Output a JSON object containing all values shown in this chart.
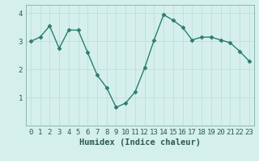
{
  "title": "",
  "xlabel": "Humidex (Indice chaleur)",
  "ylabel": "",
  "x_values": [
    0,
    1,
    2,
    3,
    4,
    5,
    6,
    7,
    8,
    9,
    10,
    11,
    12,
    13,
    14,
    15,
    16,
    17,
    18,
    19,
    20,
    21,
    22,
    23
  ],
  "y_values": [
    3.0,
    3.15,
    3.55,
    2.75,
    3.4,
    3.4,
    2.6,
    1.8,
    1.35,
    0.65,
    0.8,
    1.2,
    2.05,
    3.05,
    3.95,
    3.75,
    3.5,
    3.05,
    3.15,
    3.15,
    3.05,
    2.95,
    2.65,
    2.3
  ],
  "line_color": "#2d7d6e",
  "marker": "D",
  "marker_size": 2.5,
  "background_color": "#d5f0ec",
  "grid_color": "#c0ddd8",
  "ylim": [
    0,
    4.3
  ],
  "xlim": [
    -0.5,
    23.5
  ],
  "yticks": [
    1,
    2,
    3,
    4
  ],
  "xticks": [
    0,
    1,
    2,
    3,
    4,
    5,
    6,
    7,
    8,
    9,
    10,
    11,
    12,
    13,
    14,
    15,
    16,
    17,
    18,
    19,
    20,
    21,
    22,
    23
  ],
  "tick_fontsize": 6.5,
  "xlabel_fontsize": 7.5,
  "linewidth": 1.0
}
